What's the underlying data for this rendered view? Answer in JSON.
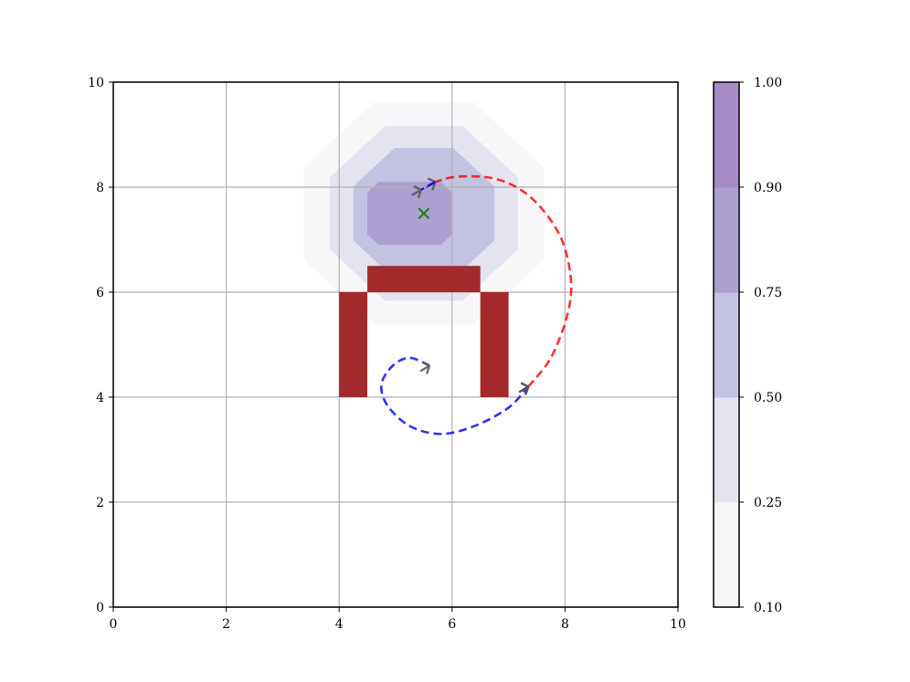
{
  "chart_data": {
    "type": "contour",
    "title": "",
    "xlabel": "",
    "ylabel": "",
    "xlim": [
      0,
      10
    ],
    "ylim": [
      0,
      10
    ],
    "xticks": [
      "0",
      "2",
      "4",
      "6",
      "8",
      "10"
    ],
    "yticks": [
      "0",
      "2",
      "4",
      "6",
      "8",
      "10"
    ],
    "grid": true,
    "contour": {
      "center": [
        5.5,
        7.5
      ],
      "levels": [
        0.1,
        0.25,
        0.5,
        0.75,
        0.9,
        1.0
      ],
      "regions": [
        {
          "min": 0.1,
          "max": 0.25,
          "color": "#f7f7fa",
          "radius": 2.3
        },
        {
          "min": 0.25,
          "max": 0.5,
          "color": "#e4e4f0",
          "radius": 1.8
        },
        {
          "min": 0.5,
          "max": 0.75,
          "color": "#c3c2e1",
          "radius": 1.35
        },
        {
          "min": 0.75,
          "max": 0.9,
          "color": "#ab9fcd",
          "radius": 0.0
        },
        {
          "min": 0.9,
          "max": 1.0,
          "color": "#a48bc4",
          "radius": 0.0
        }
      ],
      "plateau": {
        "x": [
          4.5,
          6.0
        ],
        "y": [
          6.9,
          8.1
        ],
        "color": "#ad9fcf"
      }
    },
    "obstacles": [
      {
        "x": [
          4.5,
          6.5
        ],
        "y": [
          6.0,
          6.5
        ]
      },
      {
        "x": [
          4.0,
          4.5
        ],
        "y": [
          4.0,
          6.0
        ]
      },
      {
        "x": [
          6.5,
          7.0
        ],
        "y": [
          4.0,
          6.0
        ]
      }
    ],
    "obstacle_color": "#a3292a",
    "goal": {
      "x": 5.5,
      "y": 7.5,
      "color": "#008000"
    },
    "series": [
      {
        "color": "#ff0000",
        "points": [
          [
            7.35,
            4.2
          ],
          [
            7.75,
            4.75
          ],
          [
            8.05,
            5.6
          ],
          [
            8.1,
            6.3
          ],
          [
            7.9,
            7.1
          ],
          [
            7.4,
            7.8
          ],
          [
            6.8,
            8.15
          ],
          [
            6.1,
            8.2
          ],
          [
            5.7,
            8.1
          ]
        ],
        "arrows": [
          [
            7.35,
            4.2
          ],
          [
            5.7,
            8.1
          ]
        ]
      },
      {
        "color": "#0000ff",
        "points": [
          [
            5.6,
            4.6
          ],
          [
            5.25,
            4.75
          ],
          [
            4.95,
            4.6
          ],
          [
            4.75,
            4.25
          ],
          [
            4.85,
            3.85
          ],
          [
            5.25,
            3.45
          ],
          [
            5.8,
            3.3
          ],
          [
            6.4,
            3.45
          ],
          [
            7.0,
            3.8
          ],
          [
            7.35,
            4.2
          ]
        ],
        "arrows": [
          [
            5.6,
            4.6
          ],
          [
            7.35,
            4.2
          ]
        ]
      },
      {
        "color": "#0000ff",
        "points": [
          [
            5.7,
            8.1
          ],
          [
            5.45,
            7.95
          ]
        ],
        "arrows": [
          [
            5.45,
            7.95
          ]
        ]
      }
    ],
    "colorbar": {
      "ticks": [
        "0.10",
        "0.25",
        "0.50",
        "0.75",
        "0.90",
        "1.00"
      ]
    }
  }
}
